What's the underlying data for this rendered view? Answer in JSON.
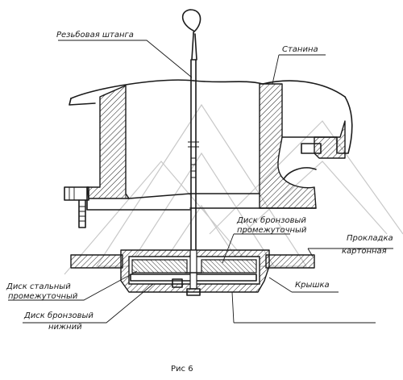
{
  "labels": {
    "rod": "Резьбовая штанга",
    "frame": "Станина",
    "bronze_mid_1": "Диск бронзовый",
    "bronze_mid_2": "промежуточный",
    "gasket_1": "Прокладка",
    "gasket_2": "картонная",
    "steel_1": "Диск стальный",
    "steel_2": "промежуточный",
    "cover": "Крышка",
    "bronze_low_1": "Диск бронзовый",
    "bronze_low_2": "нижний"
  },
  "caption": "Рис 6"
}
